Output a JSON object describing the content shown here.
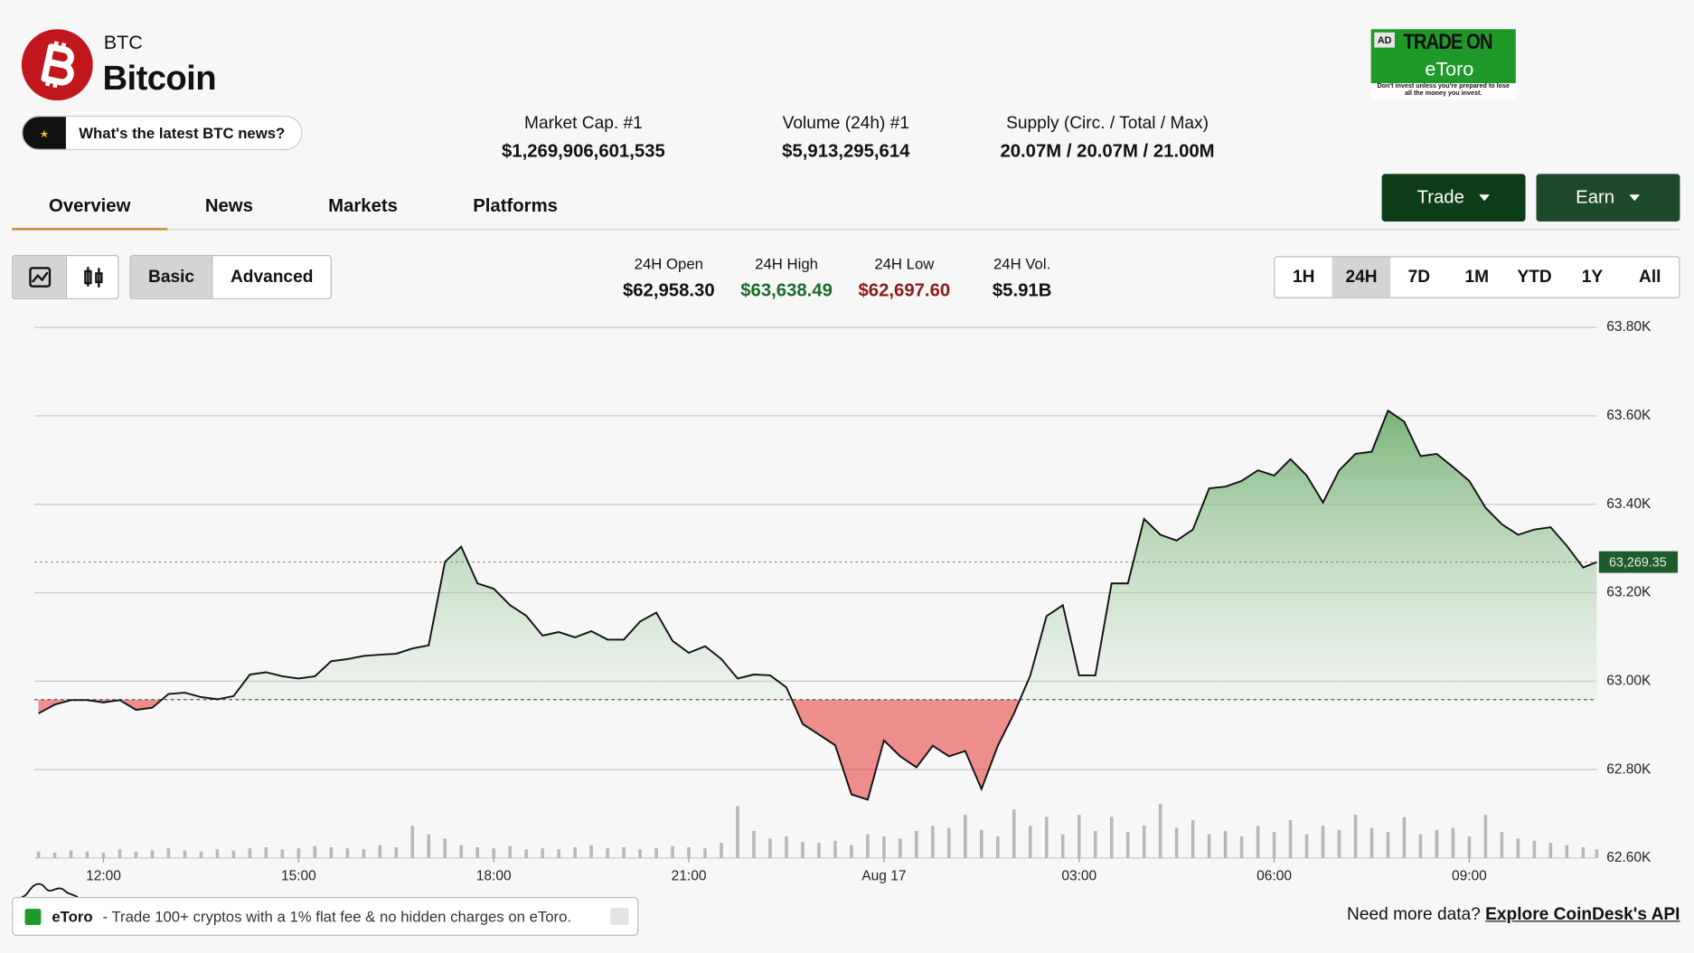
{
  "header": {
    "symbol": "BTC",
    "name": "Bitcoin",
    "news_prompt": "What's the latest BTC news?"
  },
  "ad": {
    "tag": "AD",
    "headline": "TRADE ON",
    "brand": "eToro",
    "disclaimer": "Don't invest unless you're prepared to lose all the money you invest."
  },
  "stats": [
    {
      "label": "Market Cap. #1",
      "value": "$1,269,906,601,535"
    },
    {
      "label": "Volume (24h) #1",
      "value": "$5,913,295,614"
    },
    {
      "label": "Supply (Circ. / Total / Max)",
      "value": "20.07M / 20.07M / 21.00M"
    }
  ],
  "buttons": [
    "Trade",
    "Earn"
  ],
  "tabs": {
    "items": [
      "Overview",
      "News",
      "Markets",
      "Platforms"
    ],
    "selected": "Overview"
  },
  "mode": {
    "items": [
      "Basic",
      "Advanced"
    ],
    "selected": "Basic"
  },
  "day_stats": [
    {
      "label": "24H Open",
      "value": "$62,958.30"
    },
    {
      "label": "24H High",
      "value": "$63,638.49"
    },
    {
      "label": "24H Low",
      "value": "$62,697.60"
    },
    {
      "label": "24H Vol.",
      "value": "$5.91B"
    }
  ],
  "ranges": {
    "items": [
      "1H",
      "24H",
      "7D",
      "1M",
      "YTD",
      "1Y",
      "All"
    ],
    "selected": "24H"
  },
  "chart_data": {
    "type": "line",
    "x": [
      11,
      11.25,
      11.5,
      11.75,
      12,
      12.25,
      12.5,
      12.75,
      13,
      13.25,
      13.5,
      13.75,
      14,
      14.25,
      14.5,
      14.75,
      15,
      15.25,
      15.5,
      15.75,
      16,
      16.25,
      16.5,
      16.75,
      17,
      17.25,
      17.5,
      17.75,
      18,
      18.25,
      18.5,
      18.75,
      19,
      19.25,
      19.5,
      19.75,
      20,
      20.25,
      20.5,
      20.75,
      21,
      21.25,
      21.5,
      21.75,
      22,
      22.25,
      22.5,
      22.75,
      23,
      23.25,
      23.5,
      23.75,
      24,
      24.25,
      24.5,
      24.75,
      25,
      25.25,
      25.5,
      25.75,
      26,
      26.25,
      26.5,
      26.75,
      27,
      27.25,
      27.5,
      27.75,
      28,
      28.25,
      28.5,
      28.75,
      29,
      29.25,
      29.5,
      29.75,
      30,
      30.25,
      30.5,
      30.75,
      31,
      31.25,
      31.5,
      31.75,
      32,
      32.25,
      32.5,
      32.75,
      33,
      33.25,
      33.5,
      33.75,
      34,
      34.25,
      34.5,
      34.75,
      34.96
    ],
    "values": [
      62927,
      62947,
      62957,
      62957,
      62952,
      62957,
      62935,
      62940,
      62971,
      62974,
      62964,
      62959,
      62966,
      63015,
      63020,
      63011,
      63006,
      63011,
      63045,
      63050,
      63057,
      63060,
      63062,
      63074,
      63081,
      63270,
      63304,
      63221,
      63209,
      63172,
      63148,
      63103,
      63111,
      63099,
      63113,
      63094,
      63094,
      63135,
      63155,
      63091,
      63064,
      63079,
      63050,
      63006,
      63015,
      63013,
      62986,
      62903,
      62879,
      62855,
      62744,
      62732,
      62866,
      62830,
      62805,
      62854,
      62830,
      62842,
      62756,
      62854,
      62927,
      63013,
      63147,
      63172,
      63013,
      63013,
      63221,
      63221,
      63367,
      63331,
      63318,
      63343,
      63436,
      63440,
      63453,
      63477,
      63465,
      63502,
      63465,
      63404,
      63477,
      63514,
      63519,
      63612,
      63587,
      63509,
      63514,
      63484,
      63453,
      63392,
      63355,
      63331,
      63343,
      63348,
      63306,
      63257,
      63269.35
    ],
    "volume": [
      6,
      5,
      7,
      6,
      5,
      8,
      6,
      7,
      9,
      7,
      6,
      8,
      7,
      9,
      10,
      8,
      9,
      11,
      10,
      9,
      8,
      12,
      10,
      30,
      22,
      18,
      12,
      10,
      9,
      11,
      8,
      9,
      8,
      10,
      12,
      9,
      10,
      8,
      9,
      11,
      10,
      9,
      14,
      48,
      25,
      18,
      20,
      15,
      14,
      16,
      12,
      22,
      20,
      18,
      25,
      30,
      28,
      40,
      26,
      20,
      45,
      30,
      38,
      22,
      40,
      25,
      38,
      24,
      30,
      50,
      28,
      35,
      22,
      25,
      20,
      30,
      24,
      35,
      22,
      30,
      26,
      40,
      28,
      24,
      38,
      22,
      26,
      28,
      20,
      40,
      24,
      18,
      16,
      14,
      12,
      10,
      8
    ],
    "baseline": 62958.3,
    "current": {
      "value": 63269.35,
      "label": "63,269.35"
    },
    "xlim": [
      10.94,
      34.96
    ],
    "ylim": [
      62600,
      63800
    ],
    "xticks": [
      {
        "value": 12,
        "label": "12:00"
      },
      {
        "value": 15,
        "label": "15:00"
      },
      {
        "value": 18,
        "label": "18:00"
      },
      {
        "value": 21,
        "label": "21:00"
      },
      {
        "value": 24,
        "label": "Aug 17"
      },
      {
        "value": 27,
        "label": "03:00"
      },
      {
        "value": 30,
        "label": "06:00"
      },
      {
        "value": 33,
        "label": "09:00"
      }
    ],
    "yticks": [
      {
        "value": 62600,
        "label": "62.60K"
      },
      {
        "value": 62800,
        "label": "62.80K"
      },
      {
        "value": 63000,
        "label": "63.00K"
      },
      {
        "value": 63200,
        "label": "63.20K"
      },
      {
        "value": 63400,
        "label": "63.40K"
      },
      {
        "value": 63600,
        "label": "63.60K"
      },
      {
        "value": 63800,
        "label": "63.80K"
      }
    ],
    "grid": true,
    "up_color": "#2e7d32",
    "down_color": "#e53935",
    "line_color": "#111111"
  },
  "footer": {
    "ad_brand": "eToro",
    "ad_text": "- Trade 100+ cryptos with a 1% flat fee & no hidden charges on eToro.",
    "api_prompt": "Need more data?",
    "api_link": "Explore CoinDesk's API"
  }
}
